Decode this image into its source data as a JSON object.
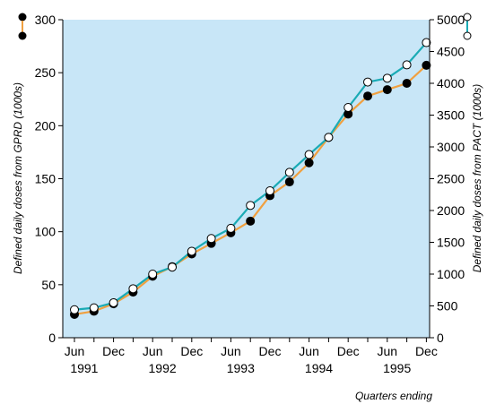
{
  "chart_data": {
    "type": "line",
    "xlabel": "Quarters ending",
    "x": [
      "Jun 1991",
      "Sep 1991",
      "Dec 1991",
      "Mar 1992",
      "Jun 1992",
      "Sep 1992",
      "Dec 1992",
      "Mar 1993",
      "Jun 1993",
      "Sep 1993",
      "Dec 1993",
      "Mar 1994",
      "Jun 1994",
      "Sep 1994",
      "Dec 1994",
      "Mar 1995",
      "Jun 1995",
      "Sep 1995",
      "Dec 1995"
    ],
    "x_ticks": [
      {
        "label": "Jun",
        "year": "1991"
      },
      {
        "label": "Dec",
        "year": ""
      },
      {
        "label": "Jun",
        "year": "1992"
      },
      {
        "label": "Dec",
        "year": ""
      },
      {
        "label": "Jun",
        "year": "1993"
      },
      {
        "label": "Dec",
        "year": ""
      },
      {
        "label": "Jun",
        "year": "1994"
      },
      {
        "label": "Dec",
        "year": ""
      },
      {
        "label": "Jun",
        "year": "1995"
      },
      {
        "label": "Dec",
        "year": ""
      }
    ],
    "y_left": {
      "label": "Defined daily doses from GPRD (1000s)",
      "lim": [
        0,
        300
      ],
      "ticks": [
        0,
        50,
        100,
        150,
        200,
        250,
        300
      ]
    },
    "y_right": {
      "label": "Defined daily doses from PACT (1000s)",
      "lim": [
        0,
        5000
      ],
      "ticks": [
        0,
        500,
        1000,
        1500,
        2000,
        2500,
        3000,
        3500,
        4000,
        4500,
        5000
      ]
    },
    "series": [
      {
        "axis": "left",
        "color": "#f0a040",
        "marker": "filled-black",
        "values": [
          22,
          25,
          32,
          43,
          58,
          67,
          79,
          89,
          99,
          110,
          134,
          147,
          165,
          189,
          211,
          228,
          234,
          240,
          257
        ]
      },
      {
        "axis": "right",
        "color": "#1aabb5",
        "marker": "open-white",
        "values": [
          440,
          470,
          550,
          770,
          1000,
          1110,
          1360,
          1560,
          1720,
          2080,
          2310,
          2600,
          2880,
          3150,
          3620,
          4020,
          4080,
          4290,
          4640
        ]
      }
    ],
    "background": "#c8e6f7",
    "grid": false,
    "legend": "top-left and top-right marker keys"
  }
}
